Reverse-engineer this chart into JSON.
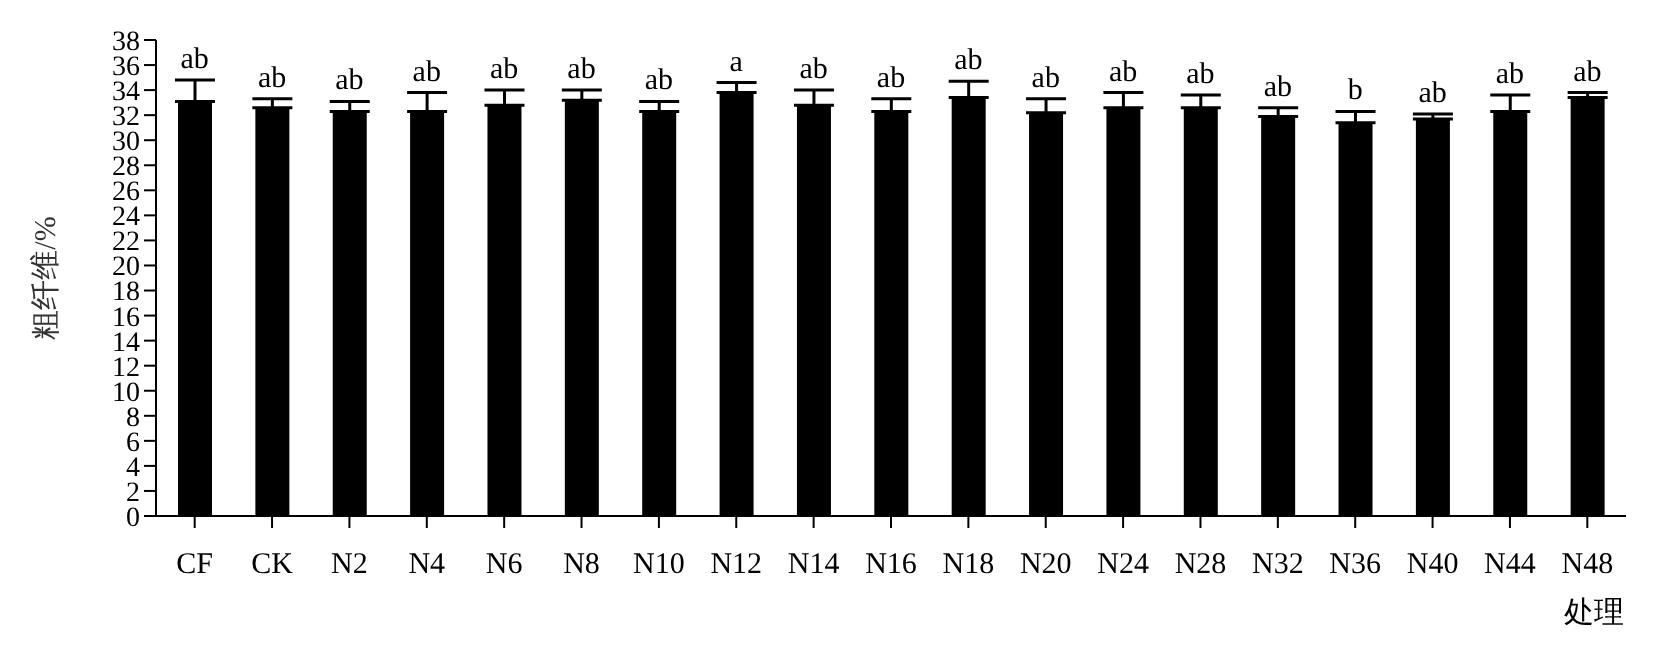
{
  "chart_data": {
    "type": "bar",
    "xlabel": "处理",
    "ylabel": "粗纤维/%",
    "categories": [
      "CF",
      "CK",
      "N2",
      "N4",
      "N6",
      "N8",
      "N10",
      "N12",
      "N14",
      "N16",
      "N18",
      "N20",
      "N24",
      "N28",
      "N32",
      "N36",
      "N40",
      "N44",
      "N48"
    ],
    "values": [
      33.1,
      32.6,
      32.3,
      32.3,
      32.8,
      33.2,
      32.3,
      33.8,
      32.8,
      32.3,
      33.4,
      32.2,
      32.6,
      32.6,
      31.9,
      31.4,
      31.7,
      32.3,
      33.4
    ],
    "errors": [
      1.7,
      0.7,
      0.8,
      1.5,
      1.2,
      0.8,
      0.8,
      0.8,
      1.2,
      1.0,
      1.3,
      1.1,
      1.2,
      1.0,
      0.7,
      0.9,
      0.4,
      1.3,
      0.4
    ],
    "color": "#000000",
    "ylim": [
      0,
      38
    ],
    "yticks": [
      0,
      2,
      4,
      6,
      8,
      10,
      12,
      14,
      16,
      18,
      20,
      22,
      24,
      26,
      28,
      30,
      32,
      34,
      36,
      38
    ],
    "annotations": [
      {
        "text": "ab",
        "x": "CF",
        "y": 34.8
      },
      {
        "text": "ab",
        "x": "CK",
        "y": 33.3
      },
      {
        "text": "ab",
        "x": "N2",
        "y": 33.1
      },
      {
        "text": "ab",
        "x": "N4",
        "y": 33.8
      },
      {
        "text": "ab",
        "x": "N6",
        "y": 34.0
      },
      {
        "text": "ab",
        "x": "N8",
        "y": 34.0
      },
      {
        "text": "ab",
        "x": "N10",
        "y": 33.1
      },
      {
        "text": "a",
        "x": "N12",
        "y": 34.6
      },
      {
        "text": "ab",
        "x": "N14",
        "y": 34.0
      },
      {
        "text": "ab",
        "x": "N16",
        "y": 33.3
      },
      {
        "text": "ab",
        "x": "N18",
        "y": 34.7
      },
      {
        "text": "ab",
        "x": "N20",
        "y": 33.3
      },
      {
        "text": "ab",
        "x": "N24",
        "y": 33.8
      },
      {
        "text": "ab",
        "x": "N28",
        "y": 33.6
      },
      {
        "text": "ab",
        "x": "N32",
        "y": 32.6
      },
      {
        "text": "b",
        "x": "N36",
        "y": 32.3
      },
      {
        "text": "ab",
        "x": "N40",
        "y": 32.1
      },
      {
        "text": "ab",
        "x": "N44",
        "y": 33.6
      },
      {
        "text": "ab",
        "x": "N48",
        "y": 33.8
      }
    ]
  }
}
